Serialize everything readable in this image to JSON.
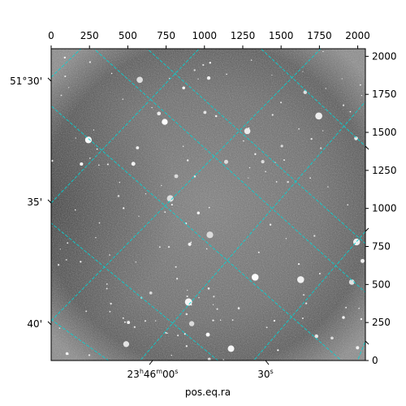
{
  "chart_data": {
    "type": "scatter",
    "description_kind": "astronomical image with WCS coordinate grid overlay",
    "image_colormap": "grayscale",
    "grid": true,
    "grid_color": "#00d5d5",
    "grid_style": "dashed",
    "xlabel": "pos.eq.ra",
    "ylabel": "",
    "pixel_axes": {
      "x": {
        "ticks": [
          0,
          250,
          500,
          750,
          1000,
          1250,
          1500,
          1750,
          2000
        ],
        "range": [
          0,
          2050
        ]
      },
      "y": {
        "ticks": [
          0,
          250,
          500,
          750,
          1000,
          1250,
          1500,
          1750,
          2000
        ],
        "range": [
          0,
          2050
        ]
      }
    },
    "world_axes": {
      "ra_ticks": [
        {
          "label_main": "23",
          "sup1": "h",
          "mid1": "46",
          "sup2": "m",
          "mid2": "00",
          "sup3": "s"
        },
        {
          "label_main": "30",
          "sup3": "s"
        }
      ],
      "dec_ticks": [
        {
          "label": "51°30'"
        },
        {
          "label": "35'"
        },
        {
          "label": "40'"
        }
      ]
    }
  }
}
